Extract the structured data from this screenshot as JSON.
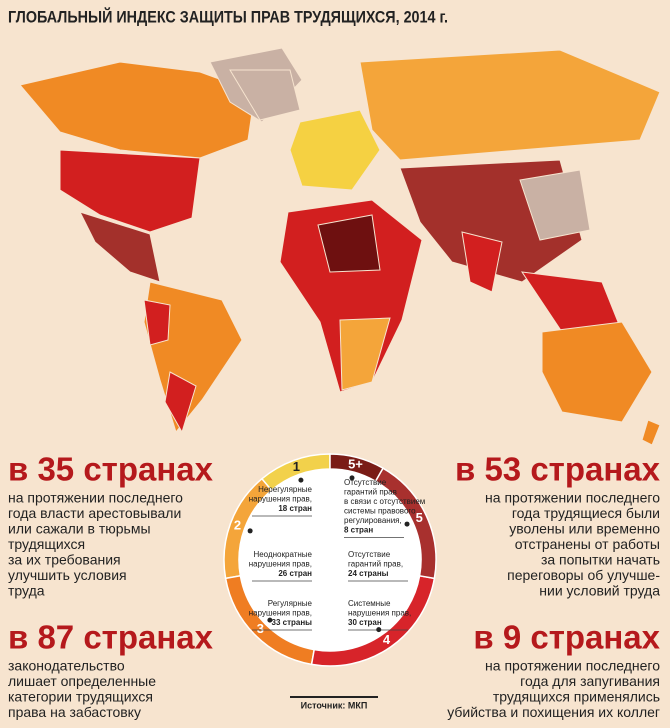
{
  "title": "ГЛОБАЛЬНЫЙ ИНДЕКС ЗАЩИТЫ ПРАВ ТРУДЯЩИХСЯ, 2014 г.",
  "facts": [
    {
      "headline": "в 35 странах",
      "lines": [
        "на протяжении последнего",
        "года власти арестовывали",
        "или сажали в тюрьмы",
        "трудящихся",
        "за их требования",
        "улучшить условия",
        "труда"
      ]
    },
    {
      "headline": "в 53 странах",
      "lines": [
        "на протяжении последнего",
        "года трудящиеся были",
        "уволены или временно",
        "отстранены от работы",
        "за попытки начать",
        "переговоры об улучше-",
        "нии условий труда"
      ]
    },
    {
      "headline": "в 87 странах",
      "lines": [
        "законодательство",
        "лишает определенные",
        "категории трудящихся",
        "права на забастовку"
      ]
    },
    {
      "headline": "в 9 странах",
      "lines": [
        "на протяжении последнего",
        "года для запугивания",
        "трудящихся применялись",
        "убийства и похищения их коллег"
      ]
    }
  ],
  "ring": [
    {
      "label": "1",
      "lines": [
        "Нерегулярные",
        "нарушения прав,"
      ],
      "count": "18 стран"
    },
    {
      "label": "2",
      "lines": [
        "Неоднократные",
        "нарушения прав,"
      ],
      "count": "26 стран"
    },
    {
      "label": "3",
      "lines": [
        "Регулярные",
        "нарушения прав,"
      ],
      "count": "33 страны"
    },
    {
      "label": "4",
      "lines": [
        "Системные",
        "нарушения прав,"
      ],
      "count": "30 стран"
    },
    {
      "label": "5",
      "lines": [
        "Отсутствие",
        "гарантий прав,"
      ],
      "count": "24 страны"
    },
    {
      "label": "5+",
      "lines": [
        "Отсутствие",
        "гарантий прав",
        "в связи с отсутствием",
        "системы правового",
        "регулирования,"
      ],
      "count": "8 стран"
    }
  ],
  "source": "Источник: МКП"
}
